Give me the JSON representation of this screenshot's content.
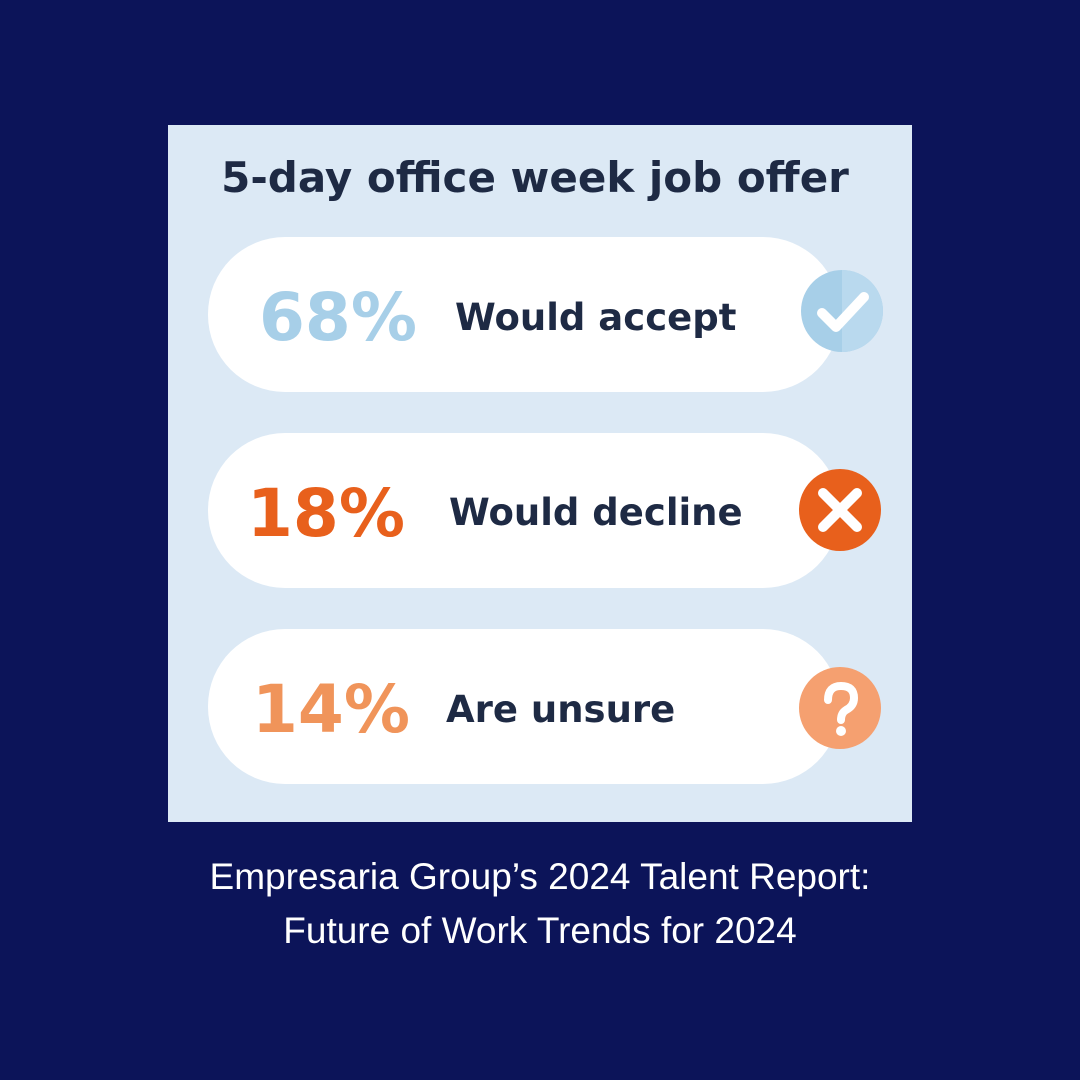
{
  "infographic": {
    "title": "5-day office week job offer",
    "items": [
      {
        "percent": "68%",
        "label": "Would accept"
      },
      {
        "percent": "18%",
        "label": "Would decline"
      },
      {
        "percent": "14%",
        "label": "Are unsure"
      }
    ]
  },
  "caption": {
    "lines": [
      "Empresaria Group’s 2024 Talent Report:",
      "Future of Work Trends for 2024"
    ]
  }
}
